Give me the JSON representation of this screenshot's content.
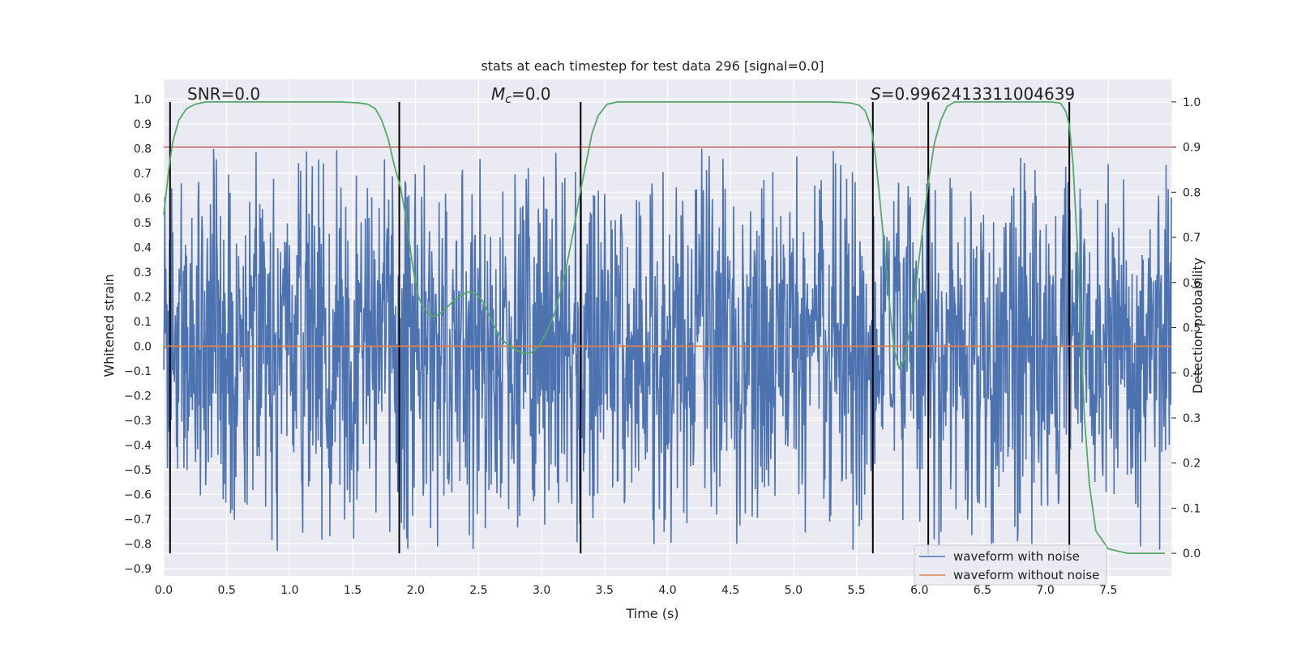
{
  "chart_data": {
    "type": "line",
    "title": "stats at each timestep for test data 296 [signal=0.0]",
    "xlabel": "Time (s)",
    "ylabel_left": "Whitened strain",
    "ylabel_right": "Detection probability",
    "xlim": [
      0.0,
      8.0
    ],
    "ylim_left": [
      -0.93,
      1.08
    ],
    "ylim_right": [
      -0.05,
      1.05
    ],
    "x_ticks": [
      "0.0",
      "0.5",
      "1.0",
      "1.5",
      "2.0",
      "2.5",
      "3.0",
      "3.5",
      "4.0",
      "4.5",
      "5.0",
      "5.5",
      "6.0",
      "6.5",
      "7.0",
      "7.5"
    ],
    "y_ticks_left": [
      "−0.9",
      "−0.8",
      "−0.7",
      "−0.6",
      "−0.5",
      "−0.4",
      "−0.3",
      "−0.2",
      "−0.1",
      "0.0",
      "0.1",
      "0.2",
      "0.3",
      "0.4",
      "0.5",
      "0.6",
      "0.7",
      "0.8",
      "0.9",
      "1.0"
    ],
    "y_ticks_right": [
      "0.0",
      "0.1",
      "0.2",
      "0.3",
      "0.4",
      "0.5",
      "0.6",
      "0.7",
      "0.8",
      "0.9",
      "1.0"
    ],
    "grid": true,
    "annotations": {
      "snr": "SNR=0.0",
      "mc_symbol": "M",
      "mc_sub": "c",
      "mc_value": "=0.0",
      "s_symbol": "S",
      "s_value": "=0.9962413311004639"
    },
    "threshold": {
      "value": 0.9,
      "axis": "right",
      "color": "#c44e52"
    },
    "vertical_lines_x": [
      0.05,
      1.87,
      3.31,
      5.63,
      6.07,
      7.19
    ],
    "noise_waveform": {
      "name": "waveform with noise",
      "color": "#4c72b0",
      "typical_range": [
        -0.55,
        0.5
      ],
      "max": 1.0,
      "min": -0.83
    },
    "series": [
      {
        "name": "waveform without noise",
        "axis": "left",
        "color": "#dd8452",
        "x": [
          0.0,
          8.0
        ],
        "y": [
          0.0,
          0.0
        ]
      },
      {
        "name": "",
        "axis": "right",
        "color": "#55a868",
        "x": [
          0.0,
          0.04,
          0.07,
          0.12,
          0.18,
          0.25,
          0.33,
          0.45,
          0.6,
          0.8,
          1.0,
          1.2,
          1.4,
          1.55,
          1.62,
          1.68,
          1.73,
          1.78,
          1.83,
          1.88,
          1.92,
          1.95,
          1.98,
          2.02,
          2.05,
          2.1,
          2.14,
          2.19,
          2.25,
          2.32,
          2.38,
          2.43,
          2.48,
          2.53,
          2.58,
          2.63,
          2.68,
          2.74,
          2.8,
          2.86,
          2.92,
          2.98,
          3.04,
          3.1,
          3.15,
          3.2,
          3.25,
          3.3,
          3.35,
          3.4,
          3.45,
          3.52,
          3.6,
          3.8,
          4.2,
          4.6,
          5.0,
          5.3,
          5.45,
          5.52,
          5.57,
          5.62,
          5.65,
          5.68,
          5.71,
          5.74,
          5.77,
          5.8,
          5.84,
          5.88,
          5.92,
          5.96,
          6.0,
          6.04,
          6.08,
          6.12,
          6.17,
          6.22,
          6.28,
          6.4,
          6.7,
          6.95,
          7.05,
          7.12,
          7.16,
          7.19,
          7.22,
          7.25,
          7.28,
          7.31,
          7.35,
          7.4,
          7.5,
          7.65,
          7.95
        ],
        "y": [
          0.75,
          0.85,
          0.91,
          0.96,
          0.985,
          0.995,
          1.0,
          1.0,
          1.0,
          1.0,
          1.0,
          1.0,
          1.0,
          0.998,
          0.995,
          0.985,
          0.96,
          0.92,
          0.86,
          0.81,
          0.75,
          0.69,
          0.63,
          0.57,
          0.55,
          0.53,
          0.525,
          0.53,
          0.545,
          0.565,
          0.575,
          0.58,
          0.575,
          0.56,
          0.53,
          0.5,
          0.475,
          0.46,
          0.45,
          0.443,
          0.445,
          0.46,
          0.49,
          0.53,
          0.58,
          0.64,
          0.71,
          0.79,
          0.86,
          0.93,
          0.97,
          0.995,
          1.0,
          1.0,
          1.0,
          1.0,
          1.0,
          1.0,
          0.998,
          0.993,
          0.98,
          0.94,
          0.88,
          0.8,
          0.71,
          0.62,
          0.53,
          0.45,
          0.41,
          0.43,
          0.49,
          0.56,
          0.66,
          0.75,
          0.84,
          0.91,
          0.96,
          0.99,
          1.0,
          1.0,
          1.0,
          1.0,
          1.0,
          0.997,
          0.98,
          0.95,
          0.86,
          0.7,
          0.5,
          0.3,
          0.15,
          0.05,
          0.01,
          0.0,
          0.0
        ]
      }
    ],
    "legend": {
      "placement": "lower-right",
      "entries": [
        {
          "label": "waveform with noise",
          "color": "#4c72b0"
        },
        {
          "label": "waveform without noise",
          "color": "#dd8452"
        }
      ]
    }
  }
}
